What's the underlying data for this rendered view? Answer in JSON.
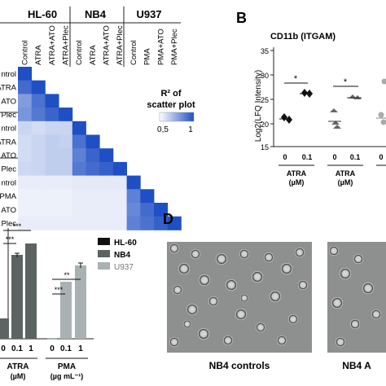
{
  "panelA": {
    "groups": [
      "HL-60",
      "NB4",
      "U937"
    ],
    "columns": [
      "Control",
      "ATRA",
      "ATRA+ATO",
      "ATRA+Plec",
      "Control",
      "ATRA",
      "ATRA+ATO",
      "ATRA+Plec",
      "Control",
      "PMA",
      "PMA+ATO",
      "PMA+Plec"
    ],
    "rows": [
      "ntrol",
      "ATRA",
      "ATO",
      "Plec",
      "ntrol",
      "ATRA",
      "ATO",
      "Plec",
      "ntrol",
      "PMA",
      "ATO",
      "Plec"
    ],
    "legend_title_line1": "R² of",
    "legend_title_line2": "scatter plot",
    "legend_min": "0,5",
    "legend_max": "1",
    "values": [
      [
        1.0
      ],
      [
        0.92,
        1.0
      ],
      [
        0.78,
        0.9,
        1.0
      ],
      [
        0.8,
        0.88,
        0.94,
        1.0
      ],
      [
        0.62,
        0.6,
        0.62,
        0.62,
        1.0
      ],
      [
        0.6,
        0.62,
        0.64,
        0.63,
        0.9,
        1.0
      ],
      [
        0.6,
        0.62,
        0.64,
        0.64,
        0.86,
        0.94,
        1.0
      ],
      [
        0.61,
        0.62,
        0.64,
        0.64,
        0.88,
        0.92,
        0.95,
        1.0
      ],
      [
        0.55,
        0.55,
        0.55,
        0.55,
        0.56,
        0.56,
        0.56,
        0.56,
        1.0
      ],
      [
        0.54,
        0.54,
        0.54,
        0.54,
        0.55,
        0.55,
        0.55,
        0.55,
        0.86,
        1.0
      ],
      [
        0.54,
        0.54,
        0.54,
        0.54,
        0.55,
        0.55,
        0.55,
        0.55,
        0.84,
        0.92,
        1.0
      ],
      [
        0.55,
        0.55,
        0.55,
        0.55,
        0.55,
        0.55,
        0.55,
        0.55,
        0.86,
        0.9,
        0.95,
        1.0
      ]
    ]
  },
  "panelB": {
    "letter": "B",
    "title": "CD11b  (ITGAM)",
    "ylabel": "Log2(LFQ Intensity)",
    "yticks": [
      "35",
      "30",
      "25",
      "20",
      "15"
    ],
    "groups": [
      {
        "xticks": [
          "0",
          "0.1"
        ],
        "label1": "ATRA",
        "label2": "(µM)",
        "sig": "*"
      },
      {
        "xticks": [
          "0",
          "0.1"
        ],
        "label1": "ATRA",
        "label2": "(µM)",
        "sig": "*"
      },
      {
        "xticks": [
          "0"
        ],
        "label1": "",
        "label2": "",
        "sig": ""
      }
    ]
  },
  "panelC": {
    "sig": [
      "***",
      "***",
      "***",
      "***",
      "**"
    ],
    "xticks": [
      "0",
      "0.1",
      "1",
      "0",
      "0.1",
      "1"
    ],
    "group1_label1": "ATRA",
    "group1_label2": "(µM)",
    "group2_label1": "PMA",
    "group2_label2": "(µg mL⁻¹)",
    "legend": [
      {
        "name": "HL-60",
        "color": "#111111"
      },
      {
        "name": "NB4",
        "color": "#5b6363"
      },
      {
        "name": "U937",
        "color": "#a9b1b3"
      }
    ]
  },
  "panelD": {
    "letter": "D",
    "caption1": "NB4 controls",
    "caption2": "NB4 A"
  }
}
